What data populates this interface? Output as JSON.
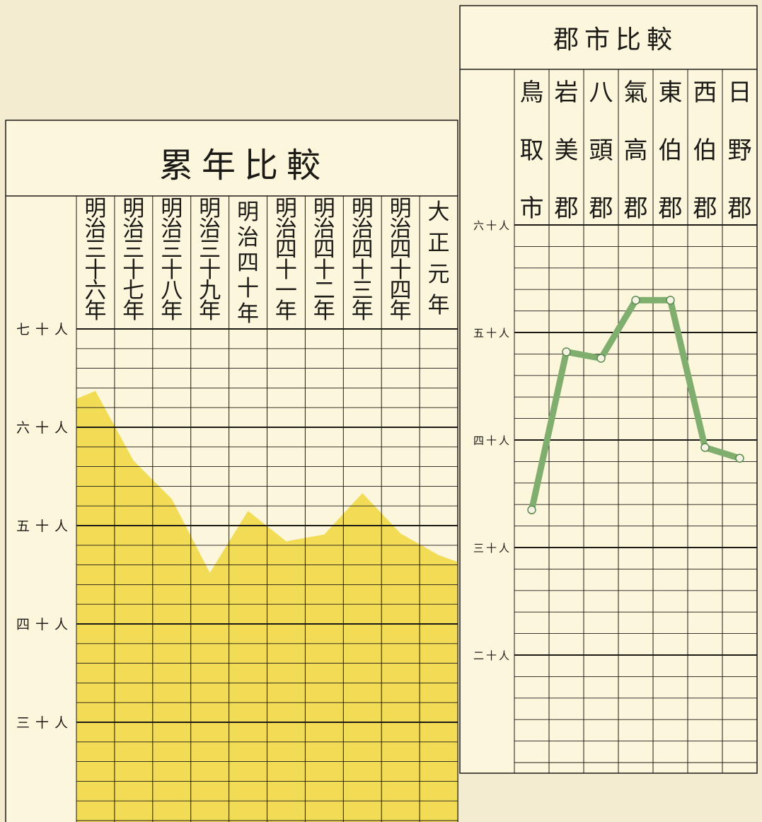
{
  "colors": {
    "paper": "#f3ecd0",
    "panel": "#fbf6dc",
    "ink": "#1c1a16",
    "area_fill": "#f3dc55",
    "line_color": "#7fae6e"
  },
  "chart_data": [
    {
      "type": "area",
      "title": "累年比較",
      "categories": [
        "明治三十六年",
        "明治三十七年",
        "明治三十八年",
        "明治三十九年",
        "明治四十年",
        "明治四十一年",
        "明治四十二年",
        "明治四十三年",
        "明治四十四年",
        "大正元年"
      ],
      "values": [
        63.7,
        56.6,
        52.7,
        45.2,
        51.5,
        48.4,
        49.1,
        53.3,
        49.2,
        47.0
      ],
      "y_ticks": [
        {
          "value": 70,
          "label": "七十人"
        },
        {
          "value": 60,
          "label": "六十人"
        },
        {
          "value": 50,
          "label": "五十人"
        },
        {
          "value": 40,
          "label": "四十人"
        },
        {
          "value": 30,
          "label": "三十人"
        }
      ],
      "ylim": [
        20,
        70
      ],
      "grid": true
    },
    {
      "type": "line",
      "title": "郡市比較",
      "categories": [
        "鳥取市",
        "岩美郡",
        "八頭郡",
        "氣高郡",
        "東伯郡",
        "西伯郡",
        "日野郡"
      ],
      "values": [
        33.5,
        48.2,
        47.6,
        53.0,
        53.0,
        39.3,
        38.3
      ],
      "y_ticks": [
        {
          "value": 60,
          "label": "六十人"
        },
        {
          "value": 50,
          "label": "五十人"
        },
        {
          "value": 40,
          "label": "四十人"
        },
        {
          "value": 30,
          "label": "三十人"
        },
        {
          "value": 20,
          "label": "二十人"
        }
      ],
      "ylim": [
        9,
        60
      ],
      "grid": true
    }
  ]
}
